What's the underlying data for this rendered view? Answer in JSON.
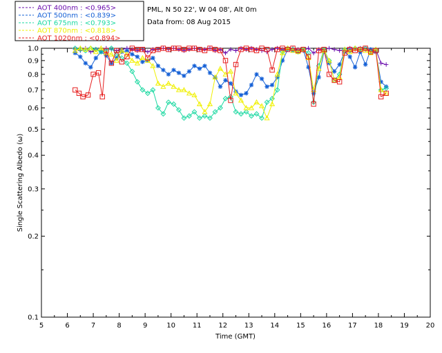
{
  "info": {
    "site": "PML, N 50 22', W 04 08', Alt 0m",
    "date": "Data from: 08 Aug 2015"
  },
  "chart_data": {
    "type": "line",
    "title": "",
    "xlabel": "Time (GMT)",
    "ylabel": "Single Scattering Albedo (ω)",
    "xlim": [
      5,
      20
    ],
    "ylim": [
      0.1,
      1.0
    ],
    "yscale": "log",
    "xticks": [
      "5",
      "6",
      "7",
      "8",
      "9",
      "10",
      "11",
      "12",
      "13",
      "14",
      "15",
      "16",
      "17",
      "18",
      "19",
      "20"
    ],
    "yticks": [
      "0.1",
      "0.2",
      "0.3",
      "0.4",
      "0.5",
      "0.6",
      "0.7",
      "0.8",
      "0.9",
      "1.0"
    ],
    "legend_position": "top-left, outside plot",
    "series": [
      {
        "name": "AOT  400nm : <0.965>",
        "color": "#6a0dad",
        "marker": "plus",
        "x": [
          6.3,
          6.5,
          6.7,
          6.9,
          7.1,
          7.3,
          7.5,
          7.7,
          7.9,
          8.1,
          8.3,
          8.5,
          8.7,
          8.9,
          9.1,
          9.3,
          9.5,
          9.7,
          9.9,
          10.1,
          10.3,
          10.5,
          10.7,
          10.9,
          11.1,
          11.3,
          11.5,
          11.7,
          11.9,
          12.1,
          12.3,
          12.5,
          12.7,
          12.9,
          13.1,
          13.3,
          13.5,
          13.7,
          13.9,
          14.1,
          14.3,
          14.5,
          14.7,
          14.9,
          15.1,
          15.3,
          15.5,
          15.7,
          15.9,
          16.1,
          16.3,
          16.5,
          16.7,
          16.9,
          17.1,
          17.3,
          17.5,
          17.7,
          17.9,
          18.1,
          18.3
        ],
        "y": [
          0.99,
          0.98,
          1.0,
          0.97,
          0.99,
          0.98,
          1.0,
          0.99,
          0.98,
          0.99,
          1.0,
          0.99,
          0.98,
          0.99,
          0.97,
          0.99,
          0.99,
          1.0,
          0.99,
          1.0,
          0.99,
          0.98,
          0.99,
          1.0,
          0.99,
          0.99,
          1.0,
          0.98,
          0.99,
          0.96,
          0.99,
          0.98,
          1.0,
          0.99,
          1.0,
          0.99,
          0.98,
          0.97,
          0.99,
          1.0,
          0.99,
          0.99,
          1.0,
          0.99,
          0.98,
          1.0,
          0.96,
          0.99,
          0.99,
          1.0,
          0.99,
          0.98,
          0.99,
          1.0,
          0.99,
          1.0,
          0.99,
          0.98,
          0.99,
          0.88,
          0.87
        ]
      },
      {
        "name": "AOT  500nm : <0.839>",
        "color": "#1560d6",
        "marker": "star",
        "x": [
          6.3,
          6.5,
          6.7,
          6.9,
          7.1,
          7.3,
          7.5,
          7.7,
          7.9,
          8.1,
          8.3,
          8.5,
          8.7,
          8.9,
          9.1,
          9.3,
          9.5,
          9.7,
          9.9,
          10.1,
          10.3,
          10.5,
          10.7,
          10.9,
          11.1,
          11.3,
          11.5,
          11.7,
          11.9,
          12.1,
          12.3,
          12.5,
          12.7,
          12.9,
          13.1,
          13.3,
          13.5,
          13.7,
          13.9,
          14.1,
          14.3,
          14.5,
          14.7,
          14.9,
          15.1,
          15.3,
          15.5,
          15.7,
          15.9,
          16.1,
          16.3,
          16.5,
          16.7,
          16.9,
          17.1,
          17.3,
          17.5,
          17.7,
          17.9,
          18.1,
          18.3
        ],
        "y": [
          0.96,
          0.93,
          0.88,
          0.85,
          0.92,
          0.97,
          0.94,
          0.88,
          0.92,
          0.97,
          0.98,
          0.95,
          0.93,
          0.89,
          0.9,
          0.92,
          0.86,
          0.83,
          0.8,
          0.83,
          0.81,
          0.79,
          0.82,
          0.86,
          0.84,
          0.86,
          0.81,
          0.78,
          0.72,
          0.76,
          0.74,
          0.69,
          0.67,
          0.68,
          0.73,
          0.8,
          0.77,
          0.72,
          0.73,
          0.78,
          0.9,
          0.99,
          0.98,
          0.97,
          0.99,
          0.85,
          0.68,
          0.78,
          0.97,
          0.88,
          0.82,
          0.87,
          0.97,
          0.93,
          0.85,
          0.97,
          0.87,
          0.99,
          0.97,
          0.75,
          0.72
        ]
      },
      {
        "name": "AOT  675nm : <0.793>",
        "color": "#19d8a0",
        "marker": "diamond",
        "x": [
          6.3,
          6.5,
          6.7,
          6.9,
          7.1,
          7.3,
          7.5,
          7.7,
          7.9,
          8.1,
          8.3,
          8.5,
          8.7,
          8.9,
          9.1,
          9.3,
          9.5,
          9.7,
          9.9,
          10.1,
          10.3,
          10.5,
          10.7,
          10.9,
          11.1,
          11.3,
          11.5,
          11.7,
          11.9,
          12.1,
          12.3,
          12.5,
          12.7,
          12.9,
          13.1,
          13.3,
          13.5,
          13.7,
          13.9,
          14.1,
          14.3,
          14.5,
          14.7,
          14.9,
          15.1,
          15.3,
          15.5,
          15.7,
          15.9,
          16.1,
          16.3,
          16.5,
          16.7,
          16.9,
          17.1,
          17.3,
          17.5,
          17.7,
          17.9,
          18.1,
          18.3
        ],
        "y": [
          1.0,
          0.99,
          0.98,
          1.0,
          0.99,
          0.97,
          0.98,
          1.0,
          0.95,
          0.92,
          0.88,
          0.82,
          0.75,
          0.7,
          0.68,
          0.7,
          0.6,
          0.57,
          0.63,
          0.62,
          0.59,
          0.55,
          0.56,
          0.58,
          0.55,
          0.56,
          0.55,
          0.58,
          0.6,
          0.65,
          0.66,
          0.58,
          0.57,
          0.58,
          0.56,
          0.57,
          0.55,
          0.63,
          0.65,
          0.7,
          0.97,
          1.0,
          0.99,
          0.97,
          0.99,
          0.96,
          0.63,
          0.86,
          0.99,
          0.9,
          0.76,
          0.8,
          0.99,
          0.98,
          1.0,
          0.99,
          1.0,
          0.97,
          0.99,
          0.7,
          0.71
        ]
      },
      {
        "name": "AOT  870nm : <0.818>",
        "color": "#f0f000",
        "marker": "triangle",
        "x": [
          6.3,
          6.5,
          6.7,
          6.9,
          7.1,
          7.3,
          7.5,
          7.7,
          7.9,
          8.1,
          8.3,
          8.5,
          8.7,
          8.9,
          9.1,
          9.3,
          9.5,
          9.7,
          9.9,
          10.1,
          10.3,
          10.5,
          10.7,
          10.9,
          11.1,
          11.3,
          11.5,
          11.7,
          11.9,
          12.1,
          12.3,
          12.5,
          12.7,
          12.9,
          13.1,
          13.3,
          13.5,
          13.7,
          13.9,
          14.1,
          14.3,
          14.5,
          14.7,
          14.9,
          15.1,
          15.3,
          15.5,
          15.7,
          15.9,
          16.1,
          16.3,
          16.5,
          16.7,
          16.9,
          17.1,
          17.3,
          17.5,
          17.7,
          17.9,
          18.1,
          18.3
        ],
        "y": [
          0.98,
          1.0,
          0.99,
          1.0,
          0.97,
          1.0,
          0.96,
          0.95,
          0.9,
          0.98,
          0.95,
          0.9,
          0.88,
          0.92,
          0.9,
          0.86,
          0.74,
          0.72,
          0.74,
          0.72,
          0.7,
          0.7,
          0.68,
          0.67,
          0.62,
          0.58,
          0.62,
          0.78,
          0.84,
          0.8,
          0.82,
          0.68,
          0.64,
          0.6,
          0.6,
          0.63,
          0.61,
          0.55,
          0.62,
          0.8,
          0.96,
          1.0,
          0.98,
          0.97,
          0.99,
          0.92,
          0.7,
          0.84,
          0.98,
          0.9,
          0.76,
          0.78,
          0.99,
          0.97,
          1.0,
          0.99,
          0.98,
          0.96,
          0.99,
          0.7,
          0.68
        ]
      },
      {
        "name": "AOT 1020nm : <0.894>",
        "color": "#e61e1e",
        "marker": "square",
        "x": [
          6.3,
          6.45,
          6.6,
          6.8,
          7.0,
          7.2,
          7.35,
          7.5,
          7.7,
          7.9,
          8.1,
          8.3,
          8.5,
          8.7,
          8.9,
          9.1,
          9.3,
          9.5,
          9.7,
          9.9,
          10.1,
          10.3,
          10.5,
          10.7,
          10.9,
          11.1,
          11.3,
          11.5,
          11.7,
          11.9,
          12.1,
          12.3,
          12.5,
          12.7,
          12.9,
          13.1,
          13.3,
          13.5,
          13.7,
          13.9,
          14.1,
          14.3,
          14.5,
          14.7,
          14.9,
          15.1,
          15.3,
          15.5,
          15.7,
          15.9,
          16.1,
          16.3,
          16.5,
          16.7,
          16.9,
          17.1,
          17.3,
          17.5,
          17.7,
          17.9,
          18.1,
          18.3
        ],
        "y": [
          0.7,
          0.68,
          0.66,
          0.67,
          0.8,
          0.81,
          0.66,
          0.98,
          0.88,
          0.98,
          0.89,
          0.93,
          1.0,
          0.99,
          0.99,
          0.92,
          0.98,
          0.99,
          1.0,
          0.99,
          1.0,
          1.0,
          0.99,
          1.0,
          1.0,
          0.99,
          0.98,
          1.0,
          0.99,
          0.98,
          0.9,
          0.64,
          0.87,
          0.99,
          1.0,
          0.99,
          0.98,
          1.0,
          0.99,
          0.83,
          0.99,
          1.0,
          0.99,
          1.0,
          0.98,
          0.99,
          0.93,
          0.62,
          0.98,
          0.99,
          0.8,
          0.76,
          0.75,
          0.96,
          0.99,
          0.98,
          0.99,
          1.0,
          0.97,
          0.98,
          0.66,
          0.68
        ]
      }
    ]
  }
}
